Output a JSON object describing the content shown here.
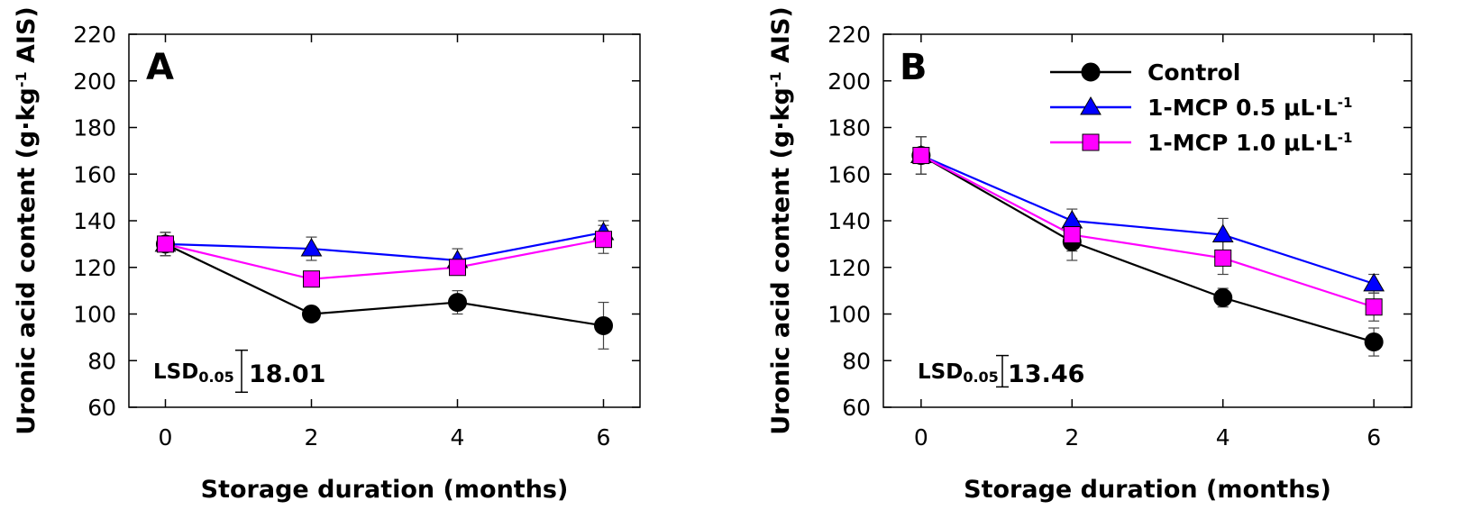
{
  "chart_data": [
    {
      "type": "line",
      "panel_label": "A",
      "x": [
        0,
        2,
        4,
        6
      ],
      "xlabel": "Storage duration (months)",
      "ylabel_main": "Uronic acid content (g·kg",
      "ylabel_sup": "-1",
      "ylabel_tail": " AIS)",
      "xlim": [
        -0.5,
        6.5
      ],
      "ylim": [
        60,
        220
      ],
      "xticks": [
        "0",
        "2",
        "4",
        "6"
      ],
      "yticks": [
        "60",
        "80",
        "100",
        "120",
        "140",
        "160",
        "180",
        "200",
        "220"
      ],
      "lsd": {
        "label": "LSD",
        "subscript": "0.05",
        "value": "18.01",
        "magnitude": 18.01
      },
      "series": [
        {
          "name": "Control",
          "color": "#000000",
          "marker": "circle",
          "values": [
            130,
            100,
            105,
            95
          ],
          "errors": [
            5,
            2,
            5,
            10
          ]
        },
        {
          "name": "1-MCP 0.5 μL·L⁻¹",
          "color": "#0000ff",
          "marker": "triangle",
          "values": [
            130,
            128,
            123,
            135
          ],
          "errors": [
            5,
            5,
            5,
            5
          ]
        },
        {
          "name": "1-MCP 1.0 μL·L⁻¹",
          "color": "#ff00ff",
          "marker": "square",
          "values": [
            130,
            115,
            120,
            132
          ],
          "errors": [
            5,
            3,
            3,
            6
          ]
        }
      ]
    },
    {
      "type": "line",
      "panel_label": "B",
      "x": [
        0,
        2,
        4,
        6
      ],
      "xlabel": "Storage duration (months)",
      "ylabel_main": "Uronic acid content (g·kg",
      "ylabel_sup": "-1",
      "ylabel_tail": " AIS)",
      "xlim": [
        -0.5,
        6.5
      ],
      "ylim": [
        60,
        220
      ],
      "xticks": [
        "0",
        "2",
        "4",
        "6"
      ],
      "yticks": [
        "60",
        "80",
        "100",
        "120",
        "140",
        "160",
        "180",
        "200",
        "220"
      ],
      "lsd": {
        "label": "LSD",
        "subscript": "0.05",
        "value": "13.46",
        "magnitude": 13.46
      },
      "series": [
        {
          "name": "Control",
          "color": "#000000",
          "marker": "circle",
          "values": [
            168,
            131,
            107,
            88
          ],
          "errors": [
            8,
            8,
            4,
            6
          ]
        },
        {
          "name": "1-MCP 0.5 μL·L⁻¹",
          "color": "#0000ff",
          "marker": "triangle",
          "values": [
            168,
            140,
            134,
            113
          ],
          "errors": [
            8,
            5,
            7,
            4
          ]
        },
        {
          "name": "1-MCP 1.0 μL·L⁻¹",
          "color": "#ff00ff",
          "marker": "square",
          "values": [
            168,
            134,
            124,
            103
          ],
          "errors": [
            8,
            7,
            7,
            6
          ]
        }
      ],
      "legend": {
        "placement": "top-right",
        "entries": [
          {
            "main": "Control",
            "sup": ""
          },
          {
            "main": "1-MCP 0.5 μL·L",
            "sup": "-1"
          },
          {
            "main": "1-MCP 1.0 μL·L",
            "sup": "-1"
          }
        ]
      }
    }
  ]
}
